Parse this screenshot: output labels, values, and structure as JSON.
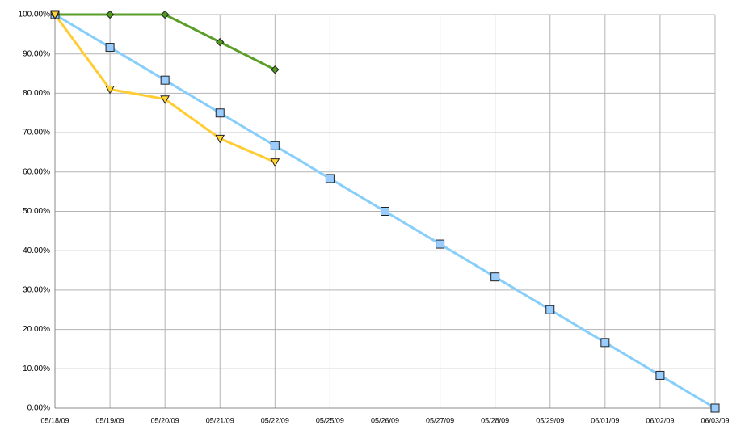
{
  "chart_data": {
    "type": "line",
    "categories": [
      "05/18/09",
      "05/19/09",
      "05/20/09",
      "05/21/09",
      "05/22/09",
      "05/25/09",
      "05/26/09",
      "05/27/09",
      "05/28/09",
      "05/29/09",
      "06/01/09",
      "06/02/09",
      "06/03/09"
    ],
    "series": [
      {
        "color": "#87cefa",
        "marker_color": "#99ccff",
        "marker": "square",
        "values": [
          100,
          91.67,
          83.33,
          75,
          66.67,
          58.33,
          50,
          41.67,
          33.33,
          25,
          16.67,
          8.33,
          0
        ]
      },
      {
        "color": "#5a9e28",
        "marker_color": "#4f9a1f",
        "marker": "diamond",
        "values": [
          100,
          100,
          100,
          93,
          86,
          null,
          null,
          null,
          null,
          null,
          null,
          null,
          null
        ]
      },
      {
        "color": "#ffcc33",
        "marker_color": "#ffd633",
        "marker": "triangle-down",
        "values": [
          100,
          81,
          78.5,
          68.5,
          62.5,
          null,
          null,
          null,
          null,
          null,
          null,
          null,
          null
        ]
      }
    ],
    "ylim": [
      0,
      100
    ],
    "yticks": [
      {
        "value": 0,
        "label": "0.00%"
      },
      {
        "value": 10,
        "label": "10.00%"
      },
      {
        "value": 20,
        "label": "20.00%"
      },
      {
        "value": 30,
        "label": "30.00%"
      },
      {
        "value": 40,
        "label": "40.00%"
      },
      {
        "value": 50,
        "label": "50.00%"
      },
      {
        "value": 60,
        "label": "60.00%"
      },
      {
        "value": 70,
        "label": "70.00%"
      },
      {
        "value": 80,
        "label": "80.00%"
      },
      {
        "value": 90,
        "label": "90.00%"
      },
      {
        "value": 100,
        "label": "100.00%"
      }
    ],
    "grid": true
  }
}
